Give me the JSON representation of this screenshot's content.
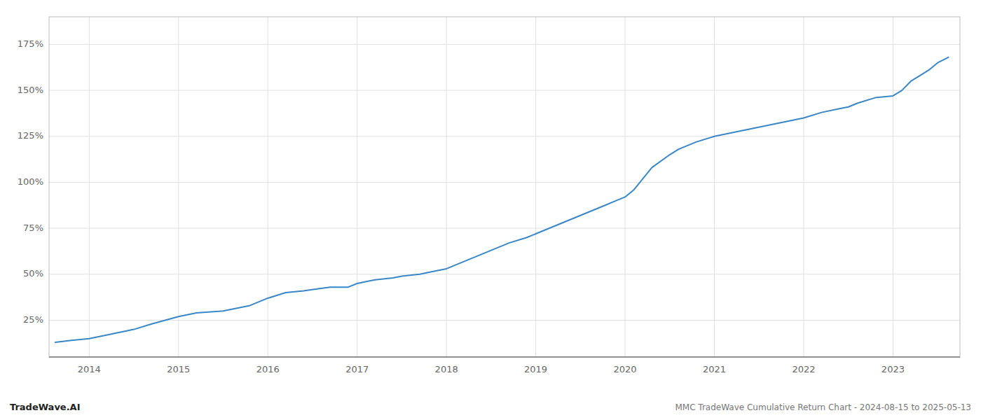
{
  "chart_data": {
    "type": "line",
    "title": "MMC TradeWave Cumulative Return Chart - 2024-08-15 to 2025-05-13",
    "annotations": [
      "TradeWave.AI"
    ],
    "color": "#3a87c8",
    "grid": true,
    "xlim": [
      2013.55,
      2023.75
    ],
    "ylim": [
      0.05,
      1.9
    ],
    "yticks": [
      {
        "value": 0.25,
        "label": "25%"
      },
      {
        "value": 0.5,
        "label": "50%"
      },
      {
        "value": 0.75,
        "label": "75%"
      },
      {
        "value": 1.0,
        "label": "100%"
      },
      {
        "value": 1.25,
        "label": "125%"
      },
      {
        "value": 1.5,
        "label": "150%"
      },
      {
        "value": 1.75,
        "label": "175%"
      }
    ],
    "xticks": [
      2014,
      2015,
      2016,
      2017,
      2018,
      2019,
      2020,
      2021,
      2022,
      2023
    ],
    "x": [
      2013.62,
      2013.8,
      2014.0,
      2014.2,
      2014.5,
      2014.7,
      2015.0,
      2015.2,
      2015.5,
      2015.8,
      2016.0,
      2016.2,
      2016.4,
      2016.55,
      2016.7,
      2016.9,
      2017.0,
      2017.1,
      2017.2,
      2017.4,
      2017.5,
      2017.7,
      2017.9,
      2018.0,
      2018.2,
      2018.4,
      2018.5,
      2018.7,
      2018.9,
      2019.0,
      2019.1,
      2019.3,
      2019.5,
      2019.6,
      2019.7,
      2019.8,
      2019.9,
      2020.0,
      2020.1,
      2020.2,
      2020.3,
      2020.5,
      2020.6,
      2020.7,
      2020.8,
      2021.0,
      2021.2,
      2021.4,
      2021.6,
      2021.8,
      2022.0,
      2022.2,
      2022.4,
      2022.5,
      2022.6,
      2022.8,
      2023.0,
      2023.1,
      2023.2,
      2023.3,
      2023.4,
      2023.5,
      2023.62
    ],
    "values": [
      0.13,
      0.14,
      0.15,
      0.17,
      0.2,
      0.23,
      0.27,
      0.29,
      0.3,
      0.33,
      0.37,
      0.4,
      0.41,
      0.42,
      0.43,
      0.43,
      0.45,
      0.46,
      0.47,
      0.48,
      0.49,
      0.5,
      0.52,
      0.53,
      0.57,
      0.61,
      0.63,
      0.67,
      0.7,
      0.72,
      0.74,
      0.78,
      0.82,
      0.84,
      0.86,
      0.88,
      0.9,
      0.92,
      0.96,
      1.02,
      1.08,
      1.15,
      1.18,
      1.2,
      1.22,
      1.25,
      1.27,
      1.29,
      1.31,
      1.33,
      1.35,
      1.38,
      1.4,
      1.41,
      1.43,
      1.46,
      1.47,
      1.5,
      1.55,
      1.58,
      1.61,
      1.65,
      1.68
    ]
  }
}
